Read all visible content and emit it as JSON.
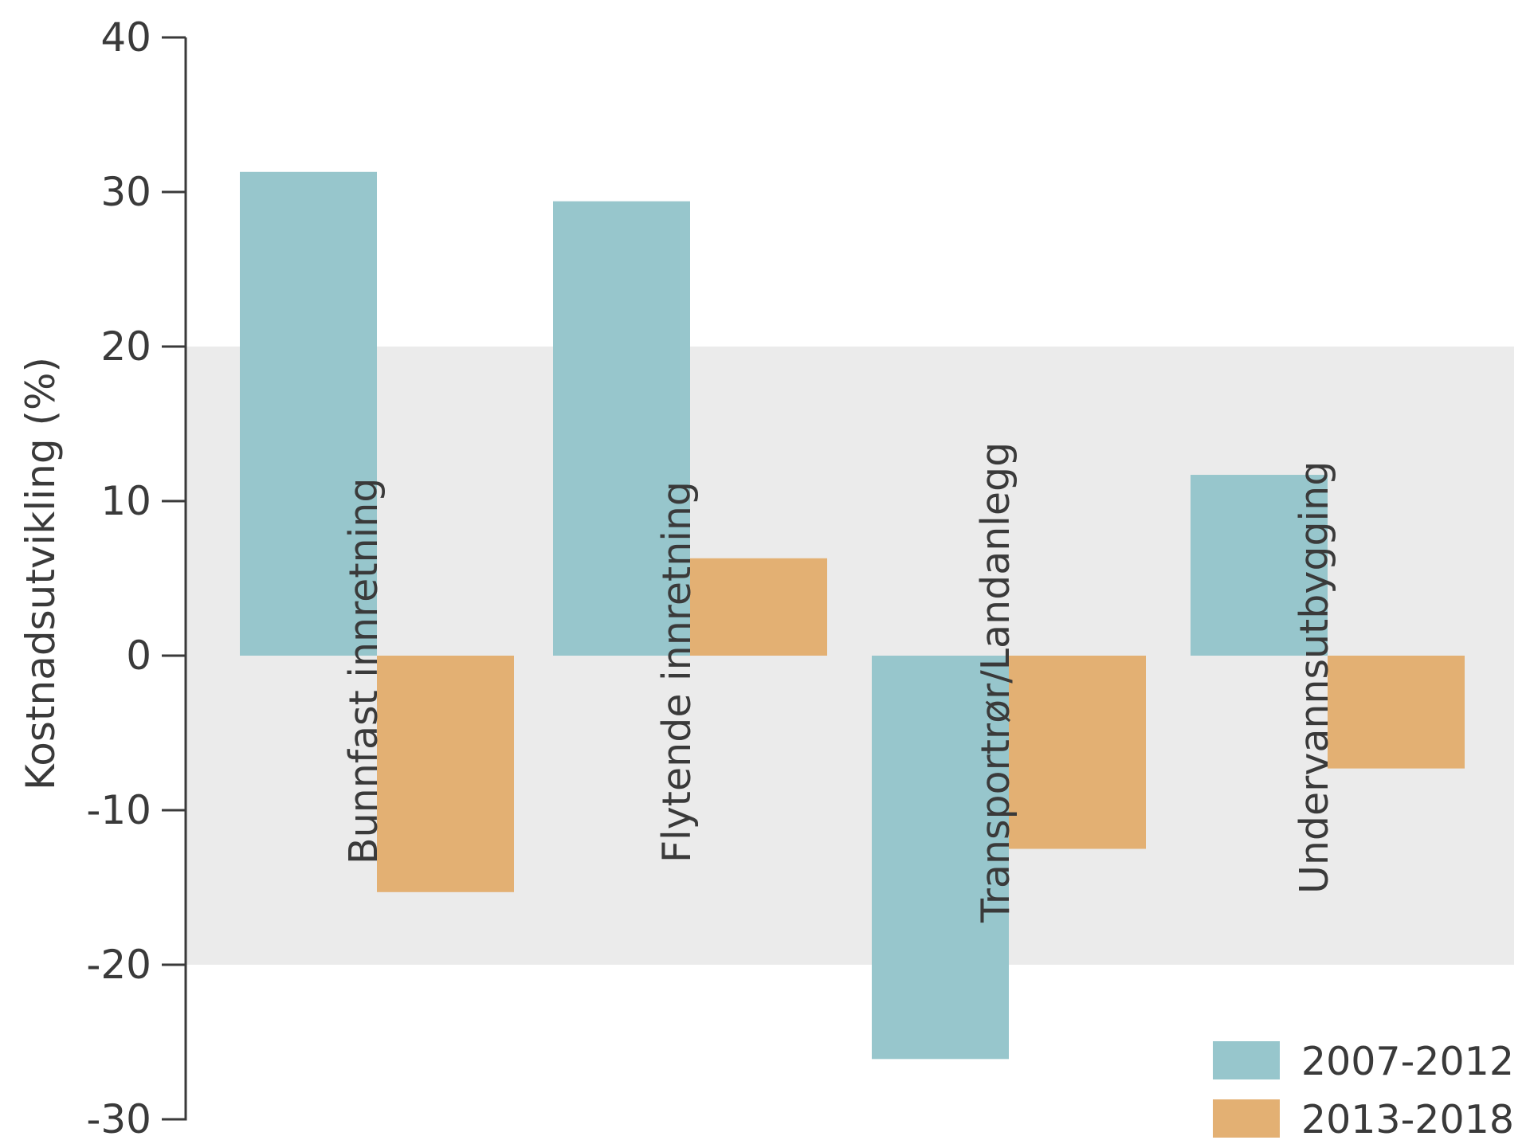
{
  "chart_data": {
    "type": "bar",
    "ylabel": "Kostnadsutvikling (%)",
    "ylim": [
      -30,
      40
    ],
    "yticks": [
      "40",
      "30",
      "20",
      "10",
      "0",
      "-10",
      "-20",
      "-30"
    ],
    "ytick_values": [
      40,
      30,
      20,
      10,
      0,
      -10,
      -20,
      -30
    ],
    "band": {
      "from": -20,
      "to": 20,
      "color": "#ebebeb"
    },
    "categories": [
      "Bunnfast innretning",
      "Flytende innretning",
      "Transportrør/Landanlegg",
      "Undervannsutbygging"
    ],
    "series": [
      {
        "name": "2007-2012",
        "color": "#97c6cc",
        "values": [
          31.3,
          29.4,
          -26.1,
          11.7
        ]
      },
      {
        "name": "2013-2018",
        "color": "#e3b073",
        "values": [
          -15.3,
          6.3,
          -12.5,
          -7.3
        ]
      }
    ],
    "legend": "bottom-right",
    "grid": false
  }
}
